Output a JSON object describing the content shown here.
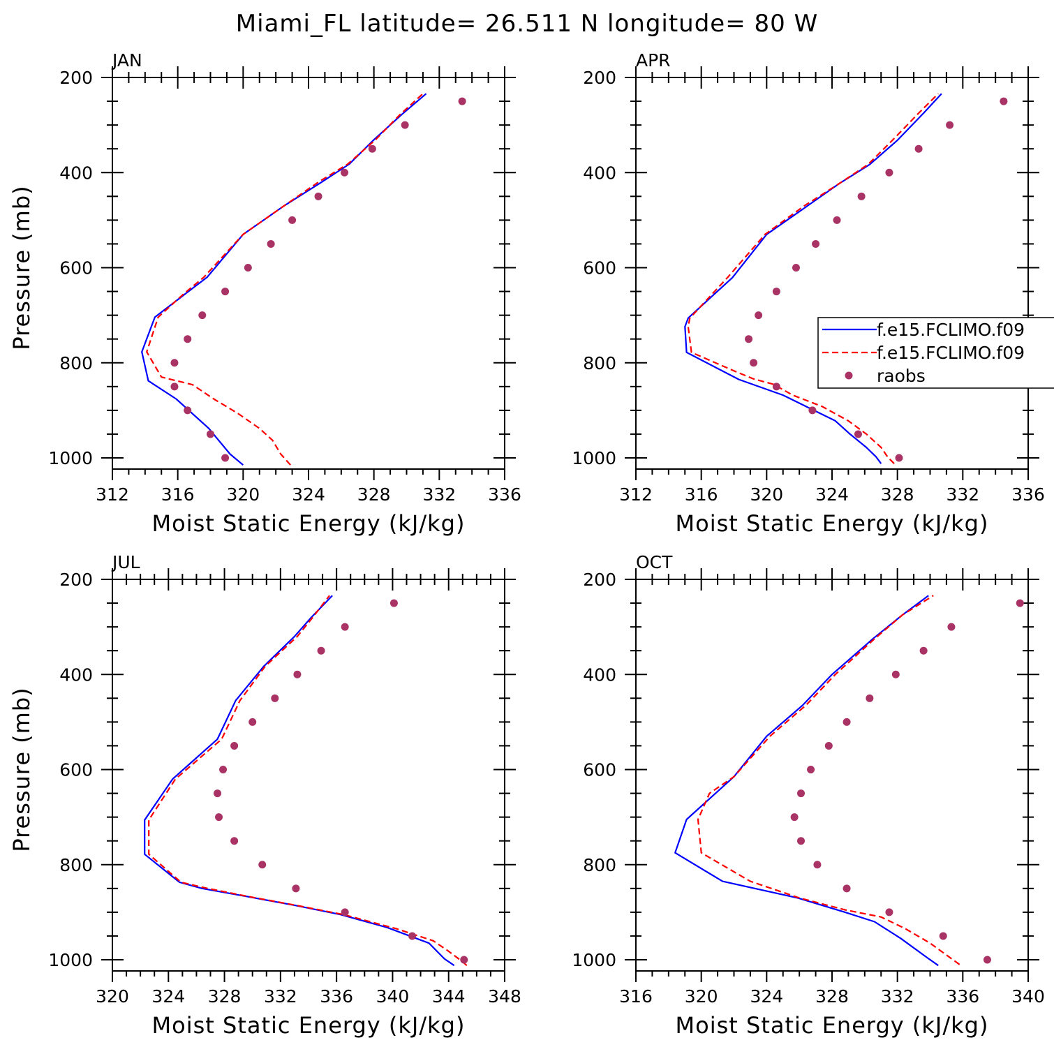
{
  "title": "Miami_FL  latitude= 26.511 N longitude= 80 W",
  "colors": {
    "model1": "#0000ff",
    "model2": "#ff0000",
    "raobs": "#aa3366",
    "axis": "#000000"
  },
  "legend": {
    "items": [
      {
        "label": "f.e15.FCLIMO.f09",
        "style": "solid"
      },
      {
        "label": "f.e15.FCLIMO.f09",
        "style": "dashed"
      },
      {
        "label": "raobs",
        "style": "dot"
      }
    ]
  },
  "chart_data": [
    {
      "type": "line",
      "title": "JAN",
      "xlabel": "Moist Static Energy (kJ/kg)",
      "ylabel": "Pressure (mb)",
      "xlim": [
        312,
        336
      ],
      "ylim": [
        1000,
        200
      ],
      "xticks": [
        312,
        316,
        320,
        324,
        328,
        332,
        336
      ],
      "yticks": [
        200,
        400,
        600,
        800,
        1000
      ],
      "series": [
        {
          "name": "f.e15.FCLIMO.f09",
          "style": "solid",
          "x": [
            320.0,
            319.2,
            318.5,
            317.9,
            315.9,
            314.2,
            313.8,
            314.6,
            316.5,
            317.8,
            320.0,
            322.5,
            324.8,
            326.5,
            328.0,
            329.7,
            331.2
          ],
          "y": [
            1015,
            992,
            963,
            938,
            876,
            838,
            777,
            704,
            654,
            620,
            530,
            470,
            420,
            382,
            331,
            278,
            234
          ]
        },
        {
          "name": "f.e15.FCLIMO.f09",
          "style": "dashed",
          "x": [
            322.9,
            322.3,
            321.8,
            321.0,
            319.7,
            318.2,
            316.9,
            315.0,
            314.1,
            314.8,
            316.4,
            317.6,
            320.0,
            322.5,
            324.6,
            326.4,
            328.1,
            329.6,
            331.0
          ],
          "y": [
            1015,
            992,
            963,
            938,
            907,
            876,
            846,
            830,
            777,
            704,
            654,
            620,
            530,
            470,
            420,
            382,
            331,
            278,
            234
          ]
        },
        {
          "name": "raobs",
          "style": "dot",
          "x": [
            318.9,
            318.0,
            316.6,
            315.8,
            315.8,
            316.6,
            317.5,
            318.9,
            320.3,
            321.7,
            323.0,
            324.6,
            326.2,
            327.9,
            329.9,
            333.4
          ],
          "y": [
            1000,
            950,
            900,
            850,
            800,
            750,
            700,
            650,
            600,
            550,
            500,
            450,
            400,
            350,
            300,
            250
          ]
        }
      ]
    },
    {
      "type": "line",
      "title": "APR",
      "xlabel": "Moist Static Energy (kJ/kg)",
      "ylabel": "",
      "xlim": [
        312,
        336
      ],
      "ylim": [
        1000,
        200
      ],
      "xticks": [
        312,
        316,
        320,
        324,
        328,
        332,
        336
      ],
      "yticks": [
        200,
        400,
        600,
        800,
        1000
      ],
      "series": [
        {
          "name": "f.e15.FCLIMO.f09",
          "style": "solid",
          "x": [
            327.0,
            326.7,
            326.1,
            325.1,
            324.2,
            322.6,
            321.0,
            318.3,
            315.1,
            315.0,
            315.2,
            317.9,
            320.0,
            322.5,
            324.4,
            326.3,
            328.0,
            329.6,
            330.7
          ],
          "y": [
            1012,
            998,
            978,
            950,
            922,
            895,
            868,
            835,
            778,
            724,
            706,
            621,
            530,
            470,
            424,
            383,
            332,
            275,
            234
          ]
        },
        {
          "name": "f.e15.FCLIMO.f09",
          "style": "dashed",
          "x": [
            327.8,
            327.4,
            327.0,
            326.1,
            325.0,
            323.4,
            321.6,
            320.4,
            319.2,
            318.0,
            315.4,
            315.2,
            315.3,
            317.6,
            319.9,
            322.3,
            324.4,
            326.2,
            327.7,
            329.3,
            330.5
          ],
          "y": [
            1012,
            998,
            978,
            950,
            922,
            892,
            868,
            845,
            834,
            817,
            778,
            724,
            706,
            621,
            530,
            470,
            424,
            383,
            332,
            275,
            234
          ]
        },
        {
          "name": "raobs",
          "style": "dot",
          "x": [
            328.1,
            325.6,
            322.8,
            320.6,
            319.2,
            318.9,
            319.5,
            320.6,
            321.8,
            323.0,
            324.3,
            325.8,
            327.5,
            329.3,
            331.2,
            334.5
          ],
          "y": [
            1000,
            950,
            900,
            850,
            800,
            750,
            700,
            650,
            600,
            550,
            500,
            450,
            400,
            350,
            300,
            250
          ]
        }
      ]
    },
    {
      "type": "line",
      "title": "JUL",
      "xlabel": "Moist Static Energy (kJ/kg)",
      "ylabel": "Pressure (mb)",
      "xlim": [
        320,
        348
      ],
      "ylim": [
        1000,
        200
      ],
      "xticks": [
        320,
        324,
        328,
        332,
        336,
        340,
        344,
        348
      ],
      "yticks": [
        200,
        400,
        600,
        800,
        1000
      ],
      "series": [
        {
          "name": "f.e15.FCLIMO.f09",
          "style": "solid",
          "x": [
            344.4,
            343.7,
            342.6,
            339.6,
            336.3,
            333.1,
            329.8,
            326.4,
            324.8,
            322.3,
            322.3,
            324.3,
            327.5,
            328.8,
            330.8,
            333.0,
            334.2,
            335.7
          ],
          "y": [
            1012,
            998,
            965,
            932,
            905,
            886,
            868,
            850,
            837,
            778,
            706,
            620,
            536,
            455,
            383,
            320,
            280,
            234
          ]
        },
        {
          "name": "f.e15.FCLIMO.f09",
          "style": "dashed",
          "x": [
            345.3,
            344.9,
            343.9,
            342.9,
            340.3,
            336.5,
            333.2,
            329.9,
            326.8,
            324.9,
            322.6,
            322.6,
            324.5,
            327.8,
            329.1,
            330.9,
            333.2,
            334.3,
            335.5
          ],
          "y": [
            1012,
            1002,
            980,
            960,
            935,
            905,
            886,
            868,
            850,
            837,
            778,
            706,
            620,
            536,
            455,
            383,
            320,
            280,
            234
          ]
        },
        {
          "name": "raobs",
          "style": "dot",
          "x": [
            345.1,
            341.4,
            336.6,
            333.1,
            330.7,
            328.7,
            327.6,
            327.5,
            327.9,
            328.7,
            330.0,
            331.6,
            333.2,
            334.9,
            336.6,
            340.1
          ],
          "y": [
            1000,
            950,
            900,
            850,
            800,
            750,
            700,
            650,
            600,
            550,
            500,
            450,
            400,
            350,
            300,
            250
          ]
        }
      ]
    },
    {
      "type": "line",
      "title": "OCT",
      "xlabel": "Moist Static Energy (kJ/kg)",
      "ylabel": "",
      "xlim": [
        316,
        340
      ],
      "ylim": [
        1000,
        200
      ],
      "xticks": [
        316,
        320,
        324,
        328,
        332,
        336,
        340
      ],
      "yticks": [
        200,
        400,
        600,
        800,
        1000
      ],
      "series": [
        {
          "name": "f.e15.FCLIMO.f09",
          "style": "solid",
          "x": [
            334.5,
            333.8,
            332.2,
            330.6,
            328.8,
            325.9,
            321.3,
            318.4,
            319.1,
            322.0,
            324.0,
            326.2,
            328.0,
            330.5,
            332.3,
            333.9
          ],
          "y": [
            1012,
            995,
            955,
            920,
            900,
            870,
            835,
            775,
            705,
            615,
            530,
            465,
            400,
            325,
            275,
            234
          ]
        },
        {
          "name": "f.e15.FCLIMO.f09",
          "style": "dashed",
          "x": [
            335.8,
            335.0,
            334.0,
            332.5,
            331.0,
            328.8,
            326.0,
            323.0,
            320.0,
            319.8,
            320.5,
            322.0,
            324.2,
            326.4,
            328.2,
            330.6,
            332.3,
            334.2
          ],
          "y": [
            1010,
            990,
            965,
            935,
            910,
            895,
            870,
            835,
            775,
            705,
            650,
            615,
            530,
            465,
            400,
            325,
            275,
            234
          ]
        },
        {
          "name": "raobs",
          "style": "dot",
          "x": [
            337.5,
            334.8,
            331.5,
            328.9,
            327.1,
            326.1,
            325.7,
            326.1,
            326.7,
            327.8,
            328.9,
            330.3,
            331.9,
            333.6,
            335.3,
            339.5
          ],
          "y": [
            1000,
            950,
            900,
            850,
            800,
            750,
            700,
            650,
            600,
            550,
            500,
            450,
            400,
            350,
            300,
            250
          ]
        }
      ]
    }
  ]
}
